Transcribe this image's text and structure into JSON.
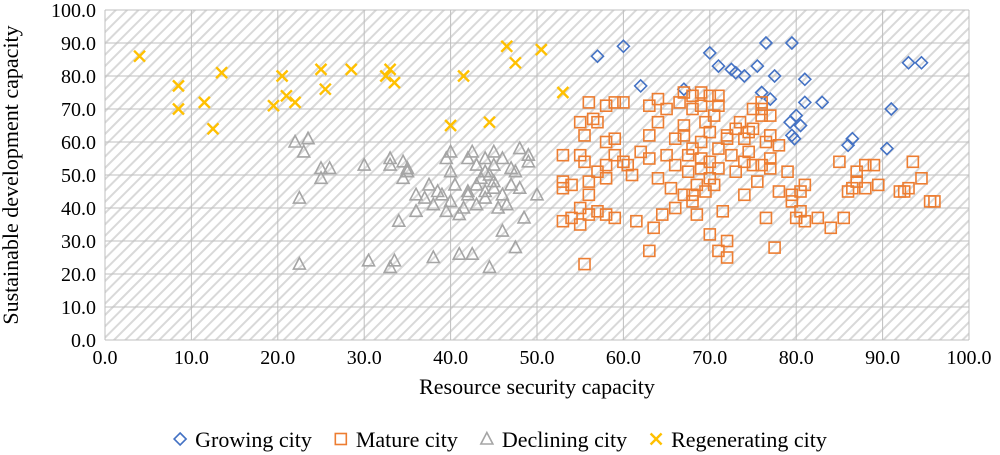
{
  "chart_data": {
    "type": "scatter",
    "xlabel": "Resource security capacity",
    "ylabel": "Sustainable development capacity",
    "xlim": [
      0,
      100
    ],
    "ylim": [
      0,
      100
    ],
    "xticks": [
      "0.0",
      "10.0",
      "20.0",
      "30.0",
      "40.0",
      "50.0",
      "60.0",
      "70.0",
      "80.0",
      "90.0",
      "100.0"
    ],
    "yticks": [
      "0.0",
      "10.0",
      "20.0",
      "30.0",
      "40.0",
      "50.0",
      "60.0",
      "70.0",
      "80.0",
      "90.0",
      "100.0"
    ],
    "grid": true,
    "background_pattern": "diagonal-hatch",
    "legend_position": "bottom",
    "series": [
      {
        "name": "Growing city",
        "marker": "diamond",
        "color": "#4472C4",
        "points": [
          [
            57,
            86
          ],
          [
            60,
            89
          ],
          [
            62,
            77
          ],
          [
            67,
            76
          ],
          [
            70,
            87
          ],
          [
            71,
            83
          ],
          [
            72.5,
            82
          ],
          [
            73,
            81
          ],
          [
            74,
            80
          ],
          [
            75.5,
            83
          ],
          [
            76.5,
            90
          ],
          [
            77.5,
            80
          ],
          [
            76,
            75
          ],
          [
            77,
            73
          ],
          [
            79.5,
            90
          ],
          [
            81,
            79
          ],
          [
            81,
            72
          ],
          [
            80,
            68
          ],
          [
            79.5,
            62
          ],
          [
            79.3,
            66
          ],
          [
            80.5,
            65
          ],
          [
            79.8,
            61
          ],
          [
            83,
            72
          ],
          [
            86,
            59
          ],
          [
            86.5,
            61
          ],
          [
            90.5,
            58
          ],
          [
            91,
            70
          ],
          [
            93,
            84
          ],
          [
            94.5,
            84
          ]
        ]
      },
      {
        "name": "Mature city",
        "marker": "square",
        "color": "#ED7D31",
        "points": [
          [
            53,
            56
          ],
          [
            53,
            48
          ],
          [
            53,
            46
          ],
          [
            53,
            36
          ],
          [
            54,
            47
          ],
          [
            54,
            37
          ],
          [
            55,
            66
          ],
          [
            55,
            56
          ],
          [
            55,
            40
          ],
          [
            55,
            35
          ],
          [
            55.5,
            62
          ],
          [
            55.5,
            54
          ],
          [
            55.5,
            23
          ],
          [
            56,
            72
          ],
          [
            56,
            48
          ],
          [
            56,
            44
          ],
          [
            56,
            38
          ],
          [
            56.5,
            67
          ],
          [
            57,
            66
          ],
          [
            57,
            51
          ],
          [
            57,
            39
          ],
          [
            58,
            71
          ],
          [
            58,
            60
          ],
          [
            58,
            53
          ],
          [
            58,
            49
          ],
          [
            58,
            38
          ],
          [
            59,
            72
          ],
          [
            59,
            61
          ],
          [
            59,
            56
          ],
          [
            59,
            37
          ],
          [
            60,
            72
          ],
          [
            60,
            54
          ],
          [
            60.5,
            53
          ],
          [
            61,
            50
          ],
          [
            61.5,
            36
          ],
          [
            62,
            57
          ],
          [
            63,
            71
          ],
          [
            63,
            62
          ],
          [
            63,
            55
          ],
          [
            63,
            27
          ],
          [
            63.5,
            34
          ],
          [
            64,
            66
          ],
          [
            64,
            73
          ],
          [
            64,
            49
          ],
          [
            64.5,
            38
          ],
          [
            65,
            70
          ],
          [
            65,
            56
          ],
          [
            65.5,
            46
          ],
          [
            66,
            61
          ],
          [
            66,
            40
          ],
          [
            66,
            53
          ],
          [
            66.5,
            72
          ],
          [
            67,
            75
          ],
          [
            67,
            65
          ],
          [
            67,
            62
          ],
          [
            67,
            44
          ],
          [
            67.5,
            56
          ],
          [
            67.5,
            51
          ],
          [
            68,
            74
          ],
          [
            68,
            70
          ],
          [
            68,
            58
          ],
          [
            68,
            44
          ],
          [
            68,
            42
          ],
          [
            68.5,
            47
          ],
          [
            68.5,
            38
          ],
          [
            69,
            75
          ],
          [
            69,
            71
          ],
          [
            69,
            60
          ],
          [
            69,
            55
          ],
          [
            69,
            52
          ],
          [
            69.5,
            66
          ],
          [
            69.5,
            45
          ],
          [
            70,
            74
          ],
          [
            70,
            63
          ],
          [
            70,
            54
          ],
          [
            70,
            49
          ],
          [
            70,
            32
          ],
          [
            70.5,
            68
          ],
          [
            70.5,
            47
          ],
          [
            71,
            74
          ],
          [
            71,
            71
          ],
          [
            71,
            58
          ],
          [
            71,
            27
          ],
          [
            71,
            52
          ],
          [
            71.5,
            39
          ],
          [
            72,
            62
          ],
          [
            72,
            61
          ],
          [
            72,
            30
          ],
          [
            72,
            25
          ],
          [
            72.5,
            56
          ],
          [
            73,
            64
          ],
          [
            73,
            51
          ],
          [
            73.5,
            66
          ],
          [
            74,
            61
          ],
          [
            74,
            44
          ],
          [
            74,
            54
          ],
          [
            74.5,
            63
          ],
          [
            74.5,
            57
          ],
          [
            75,
            70
          ],
          [
            75,
            64
          ],
          [
            75,
            53
          ],
          [
            75.5,
            48
          ],
          [
            76,
            72
          ],
          [
            76,
            70
          ],
          [
            76,
            68
          ],
          [
            76,
            53
          ],
          [
            76.5,
            60
          ],
          [
            76.5,
            37
          ],
          [
            77,
            68
          ],
          [
            77,
            62
          ],
          [
            77,
            55
          ],
          [
            77,
            52
          ],
          [
            77.5,
            28
          ],
          [
            78,
            59
          ],
          [
            78,
            45
          ],
          [
            79,
            51
          ],
          [
            79.5,
            44
          ],
          [
            79.5,
            42
          ],
          [
            80,
            37
          ],
          [
            80.5,
            39
          ],
          [
            80.5,
            45
          ],
          [
            81,
            47
          ],
          [
            81,
            36
          ],
          [
            82.5,
            37
          ],
          [
            84,
            34
          ],
          [
            85,
            54
          ],
          [
            85.5,
            37
          ],
          [
            86,
            45
          ],
          [
            86.5,
            46
          ],
          [
            87,
            48
          ],
          [
            87,
            51
          ],
          [
            88,
            53
          ],
          [
            88,
            46
          ],
          [
            89,
            53
          ],
          [
            89.5,
            47
          ],
          [
            92,
            45
          ],
          [
            92.5,
            45
          ],
          [
            93,
            46
          ],
          [
            93.5,
            54
          ],
          [
            94.5,
            49
          ],
          [
            95.5,
            42
          ],
          [
            96,
            42
          ]
        ]
      },
      {
        "name": "Declining city",
        "marker": "triangle",
        "color": "#A5A5A5",
        "points": [
          [
            22,
            60
          ],
          [
            22.5,
            43
          ],
          [
            22.5,
            23
          ],
          [
            23,
            57
          ],
          [
            23.5,
            61
          ],
          [
            25,
            52
          ],
          [
            25,
            49
          ],
          [
            26,
            52
          ],
          [
            30,
            53
          ],
          [
            30.5,
            24
          ],
          [
            33,
            55
          ],
          [
            33,
            53
          ],
          [
            33,
            22
          ],
          [
            33.5,
            24
          ],
          [
            34,
            36
          ],
          [
            34.5,
            54
          ],
          [
            34.5,
            49
          ],
          [
            35,
            52
          ],
          [
            35,
            51
          ],
          [
            36,
            44
          ],
          [
            36,
            39
          ],
          [
            37,
            43
          ],
          [
            37.5,
            47
          ],
          [
            38,
            25
          ],
          [
            38,
            41
          ],
          [
            38.5,
            45
          ],
          [
            39,
            44
          ],
          [
            39.5,
            55
          ],
          [
            39.5,
            39
          ],
          [
            40,
            57
          ],
          [
            40,
            51
          ],
          [
            40,
            42
          ],
          [
            40.5,
            47
          ],
          [
            41,
            38
          ],
          [
            41,
            26
          ],
          [
            41.5,
            40
          ],
          [
            42,
            55
          ],
          [
            42,
            45
          ],
          [
            42,
            44
          ],
          [
            42.5,
            57
          ],
          [
            42.5,
            26
          ],
          [
            43,
            53
          ],
          [
            43,
            41
          ],
          [
            43,
            47
          ],
          [
            43.5,
            49
          ],
          [
            44,
            55
          ],
          [
            44,
            51
          ],
          [
            44,
            45
          ],
          [
            44,
            43
          ],
          [
            44.5,
            50
          ],
          [
            44.5,
            22
          ],
          [
            45,
            57
          ],
          [
            45,
            53
          ],
          [
            45,
            48
          ],
          [
            45,
            46
          ],
          [
            45.5,
            40
          ],
          [
            46,
            55
          ],
          [
            46,
            44
          ],
          [
            46,
            33
          ],
          [
            46.5,
            41
          ],
          [
            47,
            52
          ],
          [
            47,
            47
          ],
          [
            47.5,
            51
          ],
          [
            47.5,
            28
          ],
          [
            48,
            58
          ],
          [
            48,
            46
          ],
          [
            48.5,
            37
          ],
          [
            49,
            56
          ],
          [
            49,
            54
          ],
          [
            50,
            44
          ]
        ]
      },
      {
        "name": "Regenerating city",
        "marker": "x",
        "color": "#FFC000",
        "points": [
          [
            4,
            86
          ],
          [
            8.5,
            77
          ],
          [
            8.5,
            70
          ],
          [
            11.5,
            72
          ],
          [
            12.5,
            64
          ],
          [
            13.5,
            81
          ],
          [
            19.5,
            71
          ],
          [
            20.5,
            80
          ],
          [
            21,
            74
          ],
          [
            22,
            72
          ],
          [
            25,
            82
          ],
          [
            25.5,
            76
          ],
          [
            28.5,
            82
          ],
          [
            32.5,
            80
          ],
          [
            33,
            82
          ],
          [
            33.5,
            78
          ],
          [
            40,
            65
          ],
          [
            41.5,
            80
          ],
          [
            44.5,
            66
          ],
          [
            46.5,
            89
          ],
          [
            47.5,
            84
          ],
          [
            50.5,
            88
          ],
          [
            53,
            75
          ]
        ]
      }
    ]
  }
}
